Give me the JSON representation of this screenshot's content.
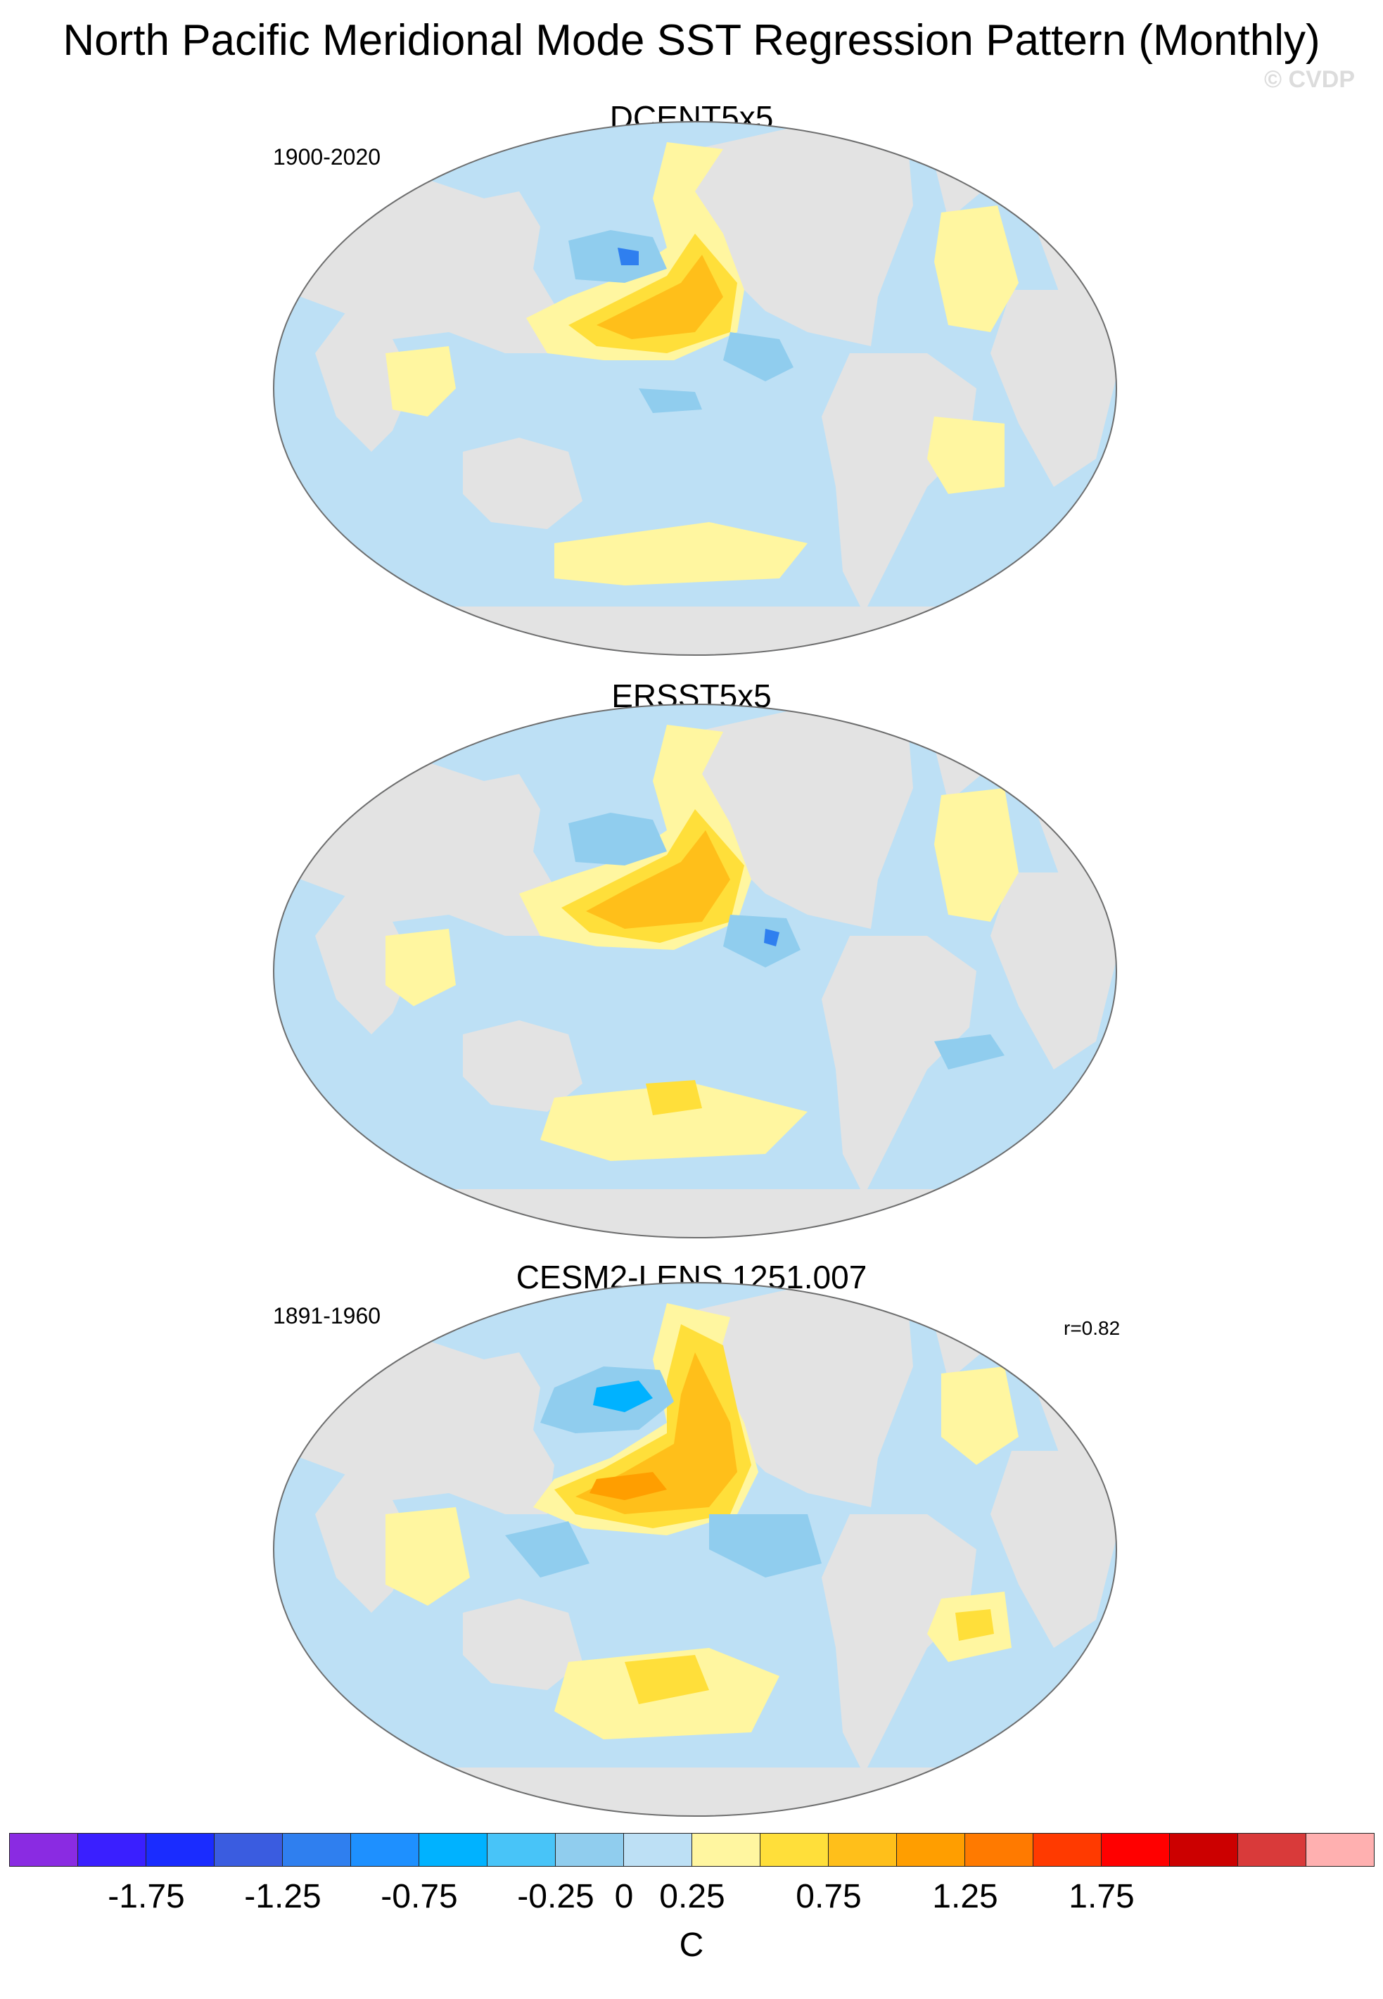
{
  "title": "North Pacific Meridional Mode SST Regression Pattern (Monthly)",
  "credit": "© CVDP",
  "panels": [
    {
      "title": "DCENT5x5",
      "period": "1900-2020",
      "correlation": ""
    },
    {
      "title": "ERSST5x5",
      "period": "",
      "correlation": ""
    },
    {
      "title": "CESM2-LENS 1251.007",
      "period": "1891-1960",
      "correlation": "r=0.82"
    }
  ],
  "colorbar": {
    "unit": "C",
    "levels": [
      -2.0,
      -1.75,
      -1.5,
      -1.25,
      -1.0,
      -0.75,
      -0.5,
      -0.25,
      0,
      0.25,
      0.5,
      0.75,
      1.0,
      1.25,
      1.5,
      1.75,
      2.0
    ],
    "labels": [
      "-1.75",
      "-1.25",
      "-0.75",
      "-0.25",
      "0",
      "0.25",
      "0.75",
      "1.25",
      "1.75"
    ],
    "colors": [
      "#8a2be2",
      "#3a1fff",
      "#1a2cff",
      "#3a5ce0",
      "#2f7fef",
      "#1e90ff",
      "#00b2ff",
      "#48c4f8",
      "#90cdee",
      "#bde0f5",
      "#fff6a0",
      "#ffdf3a",
      "#ffbf1a",
      "#ff9e00",
      "#ff7a00",
      "#ff3a00",
      "#ff0000",
      "#cc0000",
      "#d93a3a",
      "#ffb0b0"
    ]
  },
  "colors": {
    "land": "#e3e3e3",
    "coast": "#6e6e6e",
    "missing": "#e3e3e3"
  }
}
